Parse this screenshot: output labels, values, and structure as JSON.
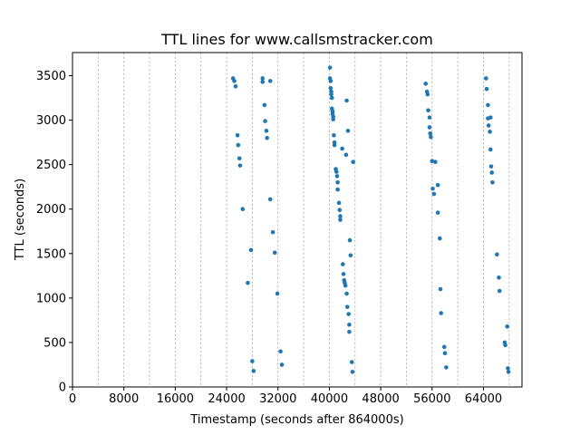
{
  "chart_data": {
    "type": "scatter",
    "title": "TTL lines for www.callsmstracker.com",
    "xlabel": "Timestamp (seconds after 864000s)",
    "ylabel": "TTL (seconds)",
    "xlim": [
      0,
      70000
    ],
    "ylim": [
      0,
      3760
    ],
    "xticks": [
      0,
      8000,
      16000,
      24000,
      32000,
      40000,
      48000,
      56000,
      64000
    ],
    "yticks": [
      0,
      500,
      1000,
      1500,
      2000,
      2500,
      3000,
      3500
    ],
    "vgrid_x": [
      4000,
      8000,
      12000,
      16000,
      20000,
      24000,
      28000,
      32000,
      36000,
      40000,
      44000,
      48000,
      52000,
      56000,
      60000,
      64000,
      68000
    ],
    "grid": "vertical dashed",
    "marker_color": "#1f77b4",
    "points": [
      [
        25000,
        3470
      ],
      [
        25200,
        3440
      ],
      [
        25400,
        3380
      ],
      [
        25700,
        2830
      ],
      [
        25800,
        2720
      ],
      [
        26000,
        2570
      ],
      [
        26100,
        2490
      ],
      [
        26500,
        2000
      ],
      [
        27300,
        1170
      ],
      [
        27800,
        1540
      ],
      [
        28000,
        290
      ],
      [
        28200,
        180
      ],
      [
        29600,
        3470
      ],
      [
        29600,
        3430
      ],
      [
        29900,
        3170
      ],
      [
        30000,
        2990
      ],
      [
        30200,
        2880
      ],
      [
        30300,
        2800
      ],
      [
        30800,
        3440
      ],
      [
        30800,
        2110
      ],
      [
        31200,
        1740
      ],
      [
        31500,
        1510
      ],
      [
        31900,
        1050
      ],
      [
        32400,
        400
      ],
      [
        32600,
        250
      ],
      [
        40100,
        3590
      ],
      [
        40100,
        3470
      ],
      [
        40200,
        3440
      ],
      [
        40200,
        3360
      ],
      [
        40300,
        3320
      ],
      [
        40300,
        3290
      ],
      [
        40400,
        3250
      ],
      [
        40400,
        3130
      ],
      [
        40500,
        3100
      ],
      [
        40500,
        3070
      ],
      [
        40600,
        3040
      ],
      [
        40600,
        3010
      ],
      [
        40700,
        2830
      ],
      [
        40800,
        2750
      ],
      [
        40800,
        2720
      ],
      [
        41000,
        2450
      ],
      [
        41100,
        2420
      ],
      [
        41200,
        2370
      ],
      [
        41300,
        2300
      ],
      [
        41300,
        2220
      ],
      [
        41500,
        2070
      ],
      [
        41600,
        1990
      ],
      [
        41700,
        1920
      ],
      [
        41700,
        1880
      ],
      [
        42000,
        2680
      ],
      [
        42100,
        1380
      ],
      [
        42200,
        1270
      ],
      [
        42300,
        1200
      ],
      [
        42400,
        1170
      ],
      [
        42500,
        1140
      ],
      [
        42600,
        2610
      ],
      [
        42700,
        1050
      ],
      [
        42700,
        3220
      ],
      [
        42800,
        900
      ],
      [
        42900,
        2880
      ],
      [
        43000,
        820
      ],
      [
        43100,
        700
      ],
      [
        43100,
        620
      ],
      [
        43200,
        1650
      ],
      [
        43300,
        1480
      ],
      [
        43500,
        280
      ],
      [
        43600,
        170
      ],
      [
        43700,
        2530
      ],
      [
        55000,
        3410
      ],
      [
        55200,
        3320
      ],
      [
        55300,
        3290
      ],
      [
        55400,
        3110
      ],
      [
        55600,
        3030
      ],
      [
        55600,
        2920
      ],
      [
        55700,
        2850
      ],
      [
        55800,
        2810
      ],
      [
        56000,
        2540
      ],
      [
        56100,
        2230
      ],
      [
        56300,
        2170
      ],
      [
        56500,
        2530
      ],
      [
        56900,
        2270
      ],
      [
        56900,
        1960
      ],
      [
        57200,
        1670
      ],
      [
        57300,
        1100
      ],
      [
        57400,
        830
      ],
      [
        57900,
        450
      ],
      [
        58000,
        380
      ],
      [
        58200,
        220
      ],
      [
        64400,
        3470
      ],
      [
        64500,
        3350
      ],
      [
        64700,
        3170
      ],
      [
        64700,
        3020
      ],
      [
        64800,
        2940
      ],
      [
        65000,
        2870
      ],
      [
        65100,
        3030
      ],
      [
        65100,
        2670
      ],
      [
        65200,
        2480
      ],
      [
        65300,
        2410
      ],
      [
        65400,
        2300
      ],
      [
        66100,
        1490
      ],
      [
        66400,
        1230
      ],
      [
        66500,
        1080
      ],
      [
        67300,
        500
      ],
      [
        67400,
        470
      ],
      [
        67700,
        680
      ],
      [
        67800,
        210
      ],
      [
        67900,
        170
      ]
    ]
  }
}
